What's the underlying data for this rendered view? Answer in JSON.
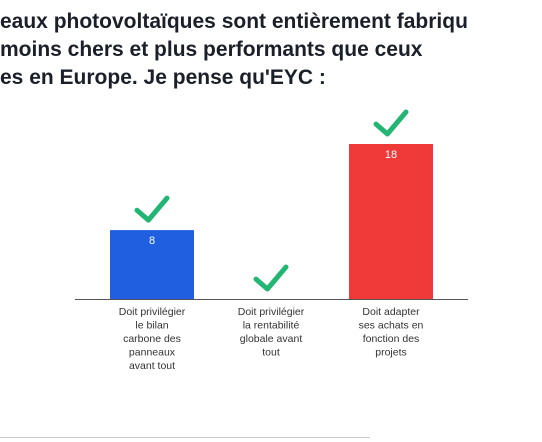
{
  "question": {
    "lines": [
      "eaux photovoltaïques sont entièrement fabriqu",
      "moins chers et plus performants que ceux",
      "es en Europe. Je pense qu'EYC :"
    ]
  },
  "chart_data": {
    "type": "bar",
    "categories": [
      "Doit privilégier le bilan carbone des panneaux avant tout",
      "Doit privilégier la rentabilité globale avant tout",
      "Doit adapter ses achats en fonction des projets"
    ],
    "category_lines": [
      [
        "Doit privilégier",
        "le bilan",
        "carbone des",
        "panneaux",
        "avant tout"
      ],
      [
        "Doit privilégier",
        "la rentabilité",
        "globale avant",
        "tout"
      ],
      [
        "Doit adapter",
        "ses achats en",
        "fonction des",
        "projets"
      ]
    ],
    "values": [
      8,
      0,
      18
    ],
    "data_labels": [
      "8",
      "",
      "18"
    ],
    "ylim": [
      0,
      18
    ],
    "grid": false,
    "bar_colors": [
      "#1f5fe0",
      "#1f5fe0",
      "#f03a3a"
    ],
    "check_color": "#22b573",
    "label_color": "#ffffff",
    "axis_color": "#555555",
    "text_color": "#333333"
  }
}
